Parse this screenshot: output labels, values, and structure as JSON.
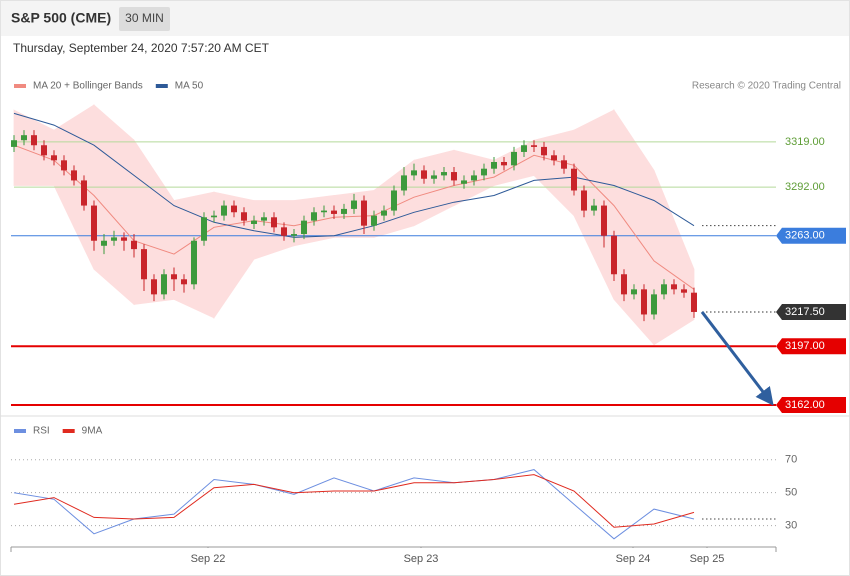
{
  "header": {
    "title": "S&P 500 (CME)",
    "interval": "30 MIN",
    "timestamp": "Thursday, September 24, 2020 7:57:20 AM CET"
  },
  "chart_data": [
    {
      "type": "candlestick",
      "source": "Research © 2020 Trading Central",
      "up_color": "#3d9a3d",
      "down_color": "#c9252b",
      "x": [
        0,
        1,
        2,
        3,
        4,
        5,
        6,
        7,
        8,
        9,
        10,
        11,
        12,
        13,
        14,
        15,
        16,
        17,
        18,
        19,
        20,
        21,
        22,
        23,
        24,
        25,
        26,
        27,
        28,
        29,
        30,
        31,
        32,
        33,
        34,
        35,
        36,
        37,
        38,
        39,
        40,
        41,
        42,
        43,
        44,
        45,
        46,
        47,
        48,
        49,
        50,
        51,
        52,
        53,
        54,
        55,
        56,
        57,
        58,
        59,
        60,
        61,
        62,
        63,
        64,
        65,
        66,
        67,
        68
      ],
      "open": [
        3316,
        3320,
        3323,
        3317,
        3311,
        3308,
        3302,
        3296,
        3281,
        3257,
        3260,
        3262,
        3260,
        3255,
        3237,
        3228,
        3240,
        3237,
        3234,
        3260,
        3274,
        3275,
        3281,
        3277,
        3270,
        3272,
        3274,
        3268,
        3263,
        3264,
        3272,
        3277,
        3278,
        3276,
        3279,
        3284,
        3269,
        3275,
        3278,
        3290,
        3299,
        3302,
        3297,
        3299,
        3301,
        3294,
        3296,
        3299,
        3303,
        3307,
        3305,
        3313,
        3317,
        3316,
        3311,
        3308,
        3303,
        3290,
        3278,
        3281,
        3263,
        3240,
        3228,
        3231,
        3216,
        3228,
        3234,
        3231,
        3229
      ],
      "high": [
        3323,
        3326,
        3326,
        3320,
        3314,
        3311,
        3305,
        3299,
        3284,
        3264,
        3266,
        3265,
        3264,
        3258,
        3240,
        3243,
        3244,
        3240,
        3262,
        3277,
        3278,
        3284,
        3284,
        3280,
        3275,
        3277,
        3277,
        3271,
        3267,
        3275,
        3280,
        3281,
        3281,
        3282,
        3288,
        3287,
        3278,
        3281,
        3293,
        3304,
        3306,
        3305,
        3302,
        3304,
        3304,
        3299,
        3302,
        3306,
        3310,
        3310,
        3316,
        3320,
        3320,
        3319,
        3314,
        3311,
        3306,
        3293,
        3285,
        3284,
        3266,
        3243,
        3234,
        3234,
        3231,
        3237,
        3237,
        3234,
        3232
      ],
      "low": [
        3313,
        3317,
        3314,
        3308,
        3305,
        3299,
        3293,
        3278,
        3254,
        3252,
        3257,
        3254,
        3250,
        3230,
        3224,
        3225,
        3230,
        3229,
        3231,
        3257,
        3271,
        3272,
        3274,
        3269,
        3267,
        3269,
        3265,
        3260,
        3259,
        3261,
        3269,
        3274,
        3273,
        3273,
        3276,
        3264,
        3266,
        3272,
        3275,
        3287,
        3296,
        3294,
        3294,
        3296,
        3293,
        3291,
        3293,
        3296,
        3300,
        3302,
        3302,
        3310,
        3313,
        3308,
        3305,
        3300,
        3287,
        3274,
        3275,
        3256,
        3236,
        3224,
        3225,
        3212,
        3213,
        3225,
        3228,
        3226,
        3214
      ],
      "close": [
        3320,
        3323,
        3317,
        3311,
        3308,
        3302,
        3296,
        3281,
        3260,
        3260,
        3262,
        3260,
        3255,
        3237,
        3228,
        3240,
        3237,
        3234,
        3260,
        3274,
        3275,
        3281,
        3277,
        3272,
        3272,
        3274,
        3268,
        3263,
        3264,
        3272,
        3277,
        3278,
        3276,
        3279,
        3284,
        3269,
        3275,
        3278,
        3290,
        3299,
        3302,
        3297,
        3299,
        3301,
        3296,
        3296,
        3299,
        3303,
        3307,
        3305,
        3313,
        3317,
        3316,
        3311,
        3308,
        3303,
        3290,
        3278,
        3281,
        3263,
        3240,
        3228,
        3231,
        3216,
        3228,
        3234,
        3231,
        3229,
        3217.5
      ],
      "series": [
        {
          "name": "MA 20 + Bollinger Bands",
          "color": "#f08a80",
          "band_color": "#fddede",
          "x": [
            0,
            4,
            8,
            12,
            16,
            20,
            24,
            28,
            32,
            36,
            40,
            44,
            48,
            52,
            56,
            60,
            64,
            68
          ],
          "values": [
            3317,
            3308,
            3287,
            3260,
            3252,
            3268,
            3272,
            3269,
            3274,
            3275,
            3286,
            3293,
            3298,
            3311,
            3305,
            3281,
            3248,
            3231
          ],
          "upper": [
            3338,
            3326,
            3341,
            3320,
            3284,
            3289,
            3284,
            3284,
            3287,
            3290,
            3308,
            3314,
            3308,
            3320,
            3326,
            3338,
            3302,
            3243
          ],
          "lower": [
            3293,
            3293,
            3243,
            3222,
            3225,
            3214,
            3249,
            3257,
            3262,
            3262,
            3269,
            3281,
            3293,
            3299,
            3275,
            3225,
            3198,
            3213
          ]
        },
        {
          "name": "MA 50",
          "color": "#2e5a98",
          "extend": true,
          "x": [
            0,
            4,
            8,
            12,
            16,
            20,
            24,
            28,
            32,
            36,
            40,
            44,
            48,
            52,
            56,
            60,
            64,
            68
          ],
          "values": [
            3336,
            3329,
            3317,
            3299,
            3281,
            3271,
            3266,
            3262,
            3263,
            3269,
            3277,
            3283,
            3287,
            3296,
            3298,
            3293,
            3284,
            3269
          ]
        }
      ],
      "levels": [
        {
          "value": 3319,
          "label": "3319.00",
          "color": "#b5d99a",
          "text_color": "#5e9d36",
          "style": "plain"
        },
        {
          "value": 3292,
          "label": "3292.00",
          "color": "#b5d99a",
          "text_color": "#5e9d36",
          "style": "plain"
        },
        {
          "value": 3263,
          "label": "3263.00",
          "color": "#3b7ddd",
          "text_color": "#ffffff",
          "style": "box"
        },
        {
          "value": 3217.5,
          "label": "3217.50",
          "color": "#333333",
          "text_color": "#ffffff",
          "style": "dotted-box"
        },
        {
          "value": 3197,
          "label": "3197.00",
          "color": "#e50000",
          "text_color": "#ffffff",
          "style": "thick-box"
        },
        {
          "value": 3162,
          "label": "3162.00",
          "color": "#e50000",
          "text_color": "#ffffff",
          "style": "thick-box"
        }
      ],
      "xlim": [
        -0.3,
        76.2
      ],
      "ylim": [
        3156,
        3344
      ]
    },
    {
      "type": "line",
      "x": [
        0,
        4,
        8,
        12,
        16,
        20,
        24,
        28,
        32,
        36,
        40,
        44,
        48,
        52,
        56,
        60,
        64,
        68
      ],
      "series": [
        {
          "name": "RSI",
          "color": "#6d8fe0",
          "extend": true,
          "values": [
            50,
            46,
            25,
            34,
            37,
            58,
            55,
            49,
            59,
            51,
            59,
            56,
            58,
            64,
            43,
            22,
            40,
            34
          ]
        },
        {
          "name": "9MA",
          "color": "#e02a1f",
          "values": [
            43,
            47,
            35,
            34,
            35,
            53,
            55,
            50,
            51,
            51,
            56,
            56,
            58,
            61,
            51,
            29,
            31,
            38
          ]
        }
      ],
      "xlim": [
        -0.3,
        76.2
      ],
      "xticks": [
        {
          "value": 19.4,
          "label": "Sep 22"
        },
        {
          "value": 40.7,
          "label": "Sep 23"
        },
        {
          "value": 61.9,
          "label": "Sep 24"
        },
        {
          "value": 69.3,
          "label": "Sep 25"
        }
      ],
      "ylim": [
        17,
        82
      ],
      "yticks": [
        30,
        50,
        70
      ],
      "grid": true
    }
  ]
}
